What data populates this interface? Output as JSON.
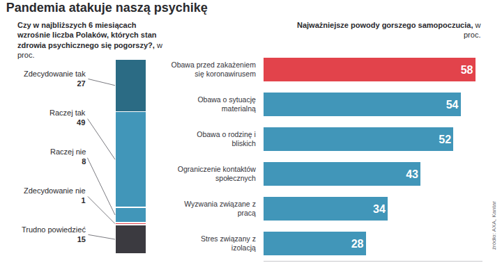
{
  "title": "Pandemia atakuje naszą psychikę",
  "source": "źródło: AXA, Kantar",
  "chart_data": [
    {
      "type": "bar",
      "subtitle": "Czy w najbliższych 6 miesiącach wzrośnie liczba Polaków, których stan zdrowia psychicznego się pogorszy?,",
      "subtitle_unit": "w proc.",
      "categories": [
        "Zdecydowanie tak",
        "Raczej tak",
        "Raczej nie",
        "Zdecydowanie nie",
        "Trudno powiedzieć"
      ],
      "values": [
        27,
        49,
        8,
        1,
        15
      ],
      "colors": [
        "#2b6b84",
        "#4196b9",
        "#4196b9",
        "#e2434b",
        "#3b3a40"
      ],
      "stacked": true,
      "data_labels": true,
      "tick_labels": false,
      "ylim": [
        0,
        100
      ]
    },
    {
      "type": "bar",
      "orientation": "horizontal",
      "subtitle": "Najważniejsze powody gorszego samopoczucia,",
      "subtitle_unit": "w proc.",
      "categories": [
        "Obawa przed zakażeniem się koronawirusem",
        "Obawa o sytuację materialną",
        "Obawa o rodzinę i bliskich",
        "Ograniczenie kontaktów społecznych",
        "Wyzwania związane z pracą",
        "Stres związany z izolacją"
      ],
      "values": [
        58,
        54,
        52,
        43,
        34,
        28
      ],
      "colors": [
        "#e2434b",
        "#4196b9",
        "#4196b9",
        "#4196b9",
        "#4196b9",
        "#4196b9"
      ],
      "data_labels": true,
      "tick_labels": "y",
      "xlim": [
        0,
        60
      ]
    }
  ]
}
